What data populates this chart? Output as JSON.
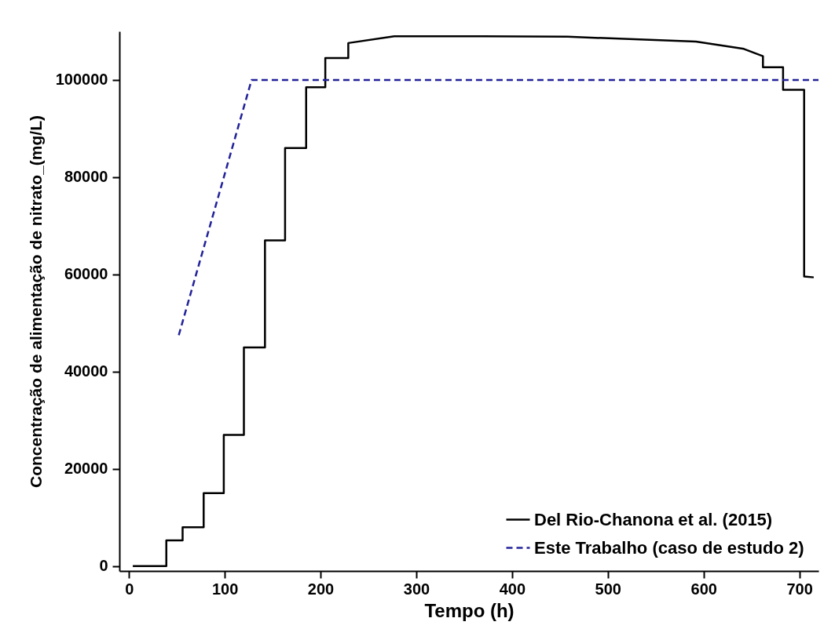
{
  "chart_data": {
    "type": "line",
    "xlabel": "Tempo (h)",
    "ylabel": "Concentração de alimentação de nitrato_(mg/L)",
    "xlim": [
      -10,
      720
    ],
    "ylim": [
      -1000,
      110000
    ],
    "xticks": [
      0,
      100,
      200,
      300,
      400,
      500,
      600,
      700
    ],
    "yticks": [
      0,
      20000,
      40000,
      60000,
      80000,
      100000
    ],
    "grid": false,
    "legend": "bottom right",
    "marker": "none",
    "series": [
      {
        "name": "Del Rio-Chanona et al. (2015)",
        "color": "#000000",
        "line_style": "solid",
        "x": [
          4,
          39,
          39,
          56,
          56,
          78,
          78,
          99,
          99,
          120,
          120,
          142,
          142,
          163,
          163,
          185,
          185,
          205,
          205,
          229,
          229,
          277,
          369,
          458,
          592,
          642,
          662,
          662,
          683,
          683,
          705,
          705,
          715
        ],
        "values": [
          0,
          0,
          5300,
          5300,
          8000,
          8000,
          15000,
          15000,
          27000,
          27000,
          45000,
          45000,
          67000,
          67000,
          86000,
          86000,
          98500,
          98500,
          104500,
          104500,
          107600,
          109000,
          109000,
          108900,
          107900,
          106400,
          104900,
          102600,
          102600,
          98000,
          98000,
          59600,
          59400
        ]
      },
      {
        "name": "Este Trabalho (caso de estudo 2)",
        "color": "#22229a",
        "line_style": "dashed",
        "x": [
          52,
          128,
          720
        ],
        "values": [
          47500,
          100000,
          100000
        ]
      }
    ]
  }
}
